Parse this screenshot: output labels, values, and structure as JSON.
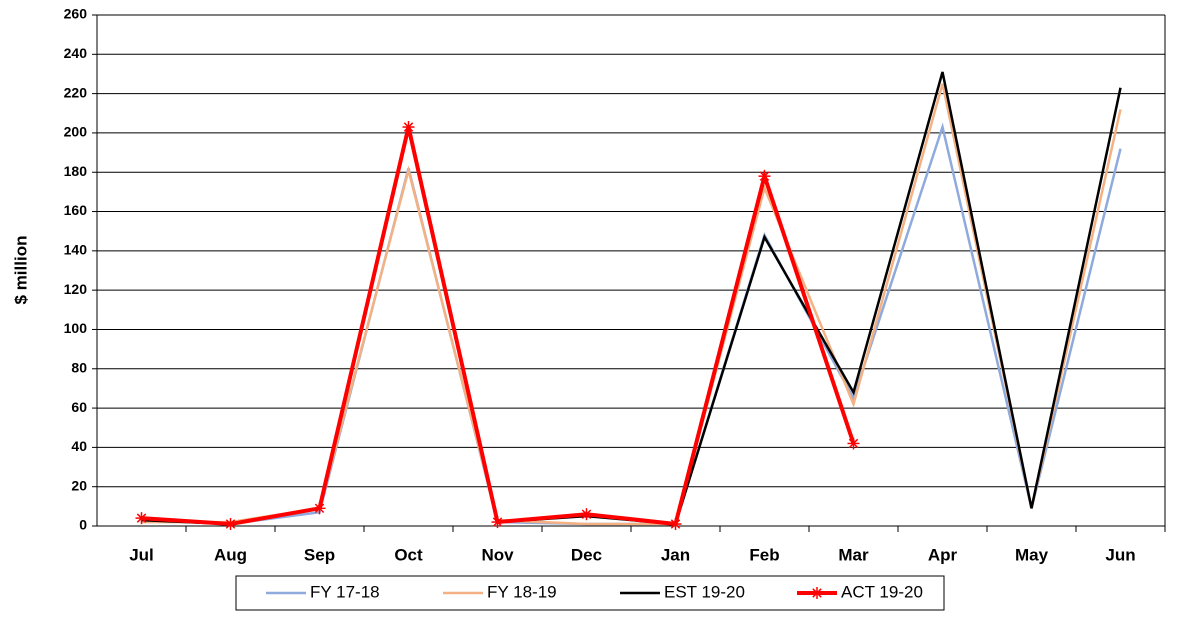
{
  "chart_data": {
    "type": "line",
    "y_label": "$ million",
    "categories": [
      "Jul",
      "Aug",
      "Sep",
      "Oct",
      "Nov",
      "Dec",
      "Jan",
      "Feb",
      "Mar",
      "Apr",
      "May",
      "Jun"
    ],
    "series": [
      {
        "name": "FY 17-18",
        "color": "#8faadc",
        "values": [
          3,
          1,
          7,
          182,
          2,
          1,
          1,
          148,
          65,
          203,
          9,
          192
        ]
      },
      {
        "name": "FY 18-19",
        "color": "#f4b183",
        "values": [
          2,
          2,
          9,
          181,
          3,
          1,
          1,
          172,
          62,
          225,
          9,
          212
        ]
      },
      {
        "name": "EST 19-20",
        "color": "#000000",
        "values": [
          3,
          1,
          9,
          203,
          2,
          5,
          1,
          147,
          68,
          231,
          9,
          223
        ]
      },
      {
        "name": "ACT 19-20",
        "color": "#ff0000",
        "marker": "asterisk",
        "values": [
          4,
          1,
          9,
          203,
          2,
          6,
          1,
          178,
          42,
          null,
          null,
          null
        ]
      }
    ],
    "ylim": [
      0,
      260
    ],
    "yticks": [
      0,
      20,
      40,
      60,
      80,
      100,
      120,
      140,
      160,
      180,
      200,
      220,
      240,
      260
    ],
    "grid": true,
    "legend": "bottom"
  }
}
